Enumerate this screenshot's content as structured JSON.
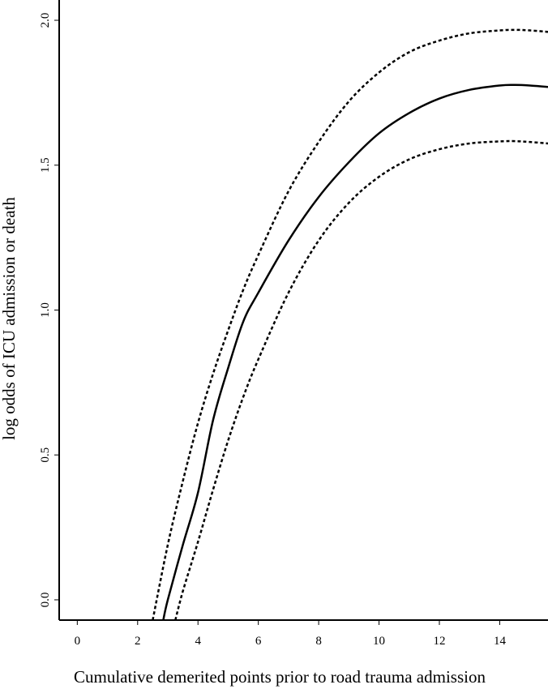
{
  "chart_data": {
    "type": "line",
    "title": "",
    "xlabel": "Cumulative demerited points prior to road trauma admission",
    "ylabel": "log odds of ICU admission or death",
    "xlim": [
      -0.6,
      15.6
    ],
    "ylim": [
      -0.07,
      2.07
    ],
    "x_ticks": [
      0,
      2,
      4,
      6,
      8,
      10,
      12,
      14
    ],
    "y_ticks": [
      0.0,
      0.5,
      1.0,
      1.5,
      2.0
    ],
    "x_tick_labels": [
      "0",
      "2",
      "4",
      "6",
      "8",
      "10",
      "12",
      "14"
    ],
    "y_tick_labels": [
      "0.0",
      "0.5",
      "1.0",
      "1.5",
      "2.0"
    ],
    "grid": false,
    "series": [
      {
        "style": "dotted",
        "x": [
          2.5,
          3.0,
          3.5,
          4.0,
          4.5,
          5.0,
          5.5,
          6.0,
          7.0,
          8.0,
          9.0,
          10.0,
          11.0,
          12.0,
          13.0,
          14.0,
          14.5,
          15.0,
          15.6
        ],
        "y": [
          -0.07,
          0.19,
          0.41,
          0.61,
          0.78,
          0.93,
          1.07,
          1.19,
          1.41,
          1.58,
          1.72,
          1.82,
          1.89,
          1.93,
          1.955,
          1.965,
          1.967,
          1.965,
          1.96
        ]
      },
      {
        "style": "solid",
        "x": [
          2.85,
          3.0,
          3.5,
          4.0,
          4.5,
          5.0,
          5.5,
          6.0,
          7.0,
          8.0,
          9.0,
          10.0,
          11.0,
          12.0,
          13.0,
          14.0,
          14.5,
          15.0,
          15.6
        ],
        "y": [
          -0.07,
          0.0,
          0.19,
          0.37,
          0.62,
          0.8,
          0.96,
          1.06,
          1.24,
          1.39,
          1.51,
          1.61,
          1.68,
          1.73,
          1.76,
          1.775,
          1.777,
          1.775,
          1.77
        ]
      },
      {
        "style": "dotted",
        "x": [
          3.25,
          3.5,
          4.0,
          4.5,
          5.0,
          5.5,
          6.0,
          7.0,
          8.0,
          9.0,
          10.0,
          11.0,
          12.0,
          13.0,
          14.0,
          14.5,
          15.0,
          15.6
        ],
        "y": [
          -0.07,
          0.03,
          0.2,
          0.38,
          0.55,
          0.7,
          0.83,
          1.06,
          1.24,
          1.37,
          1.46,
          1.52,
          1.555,
          1.575,
          1.582,
          1.583,
          1.58,
          1.575
        ]
      }
    ]
  }
}
